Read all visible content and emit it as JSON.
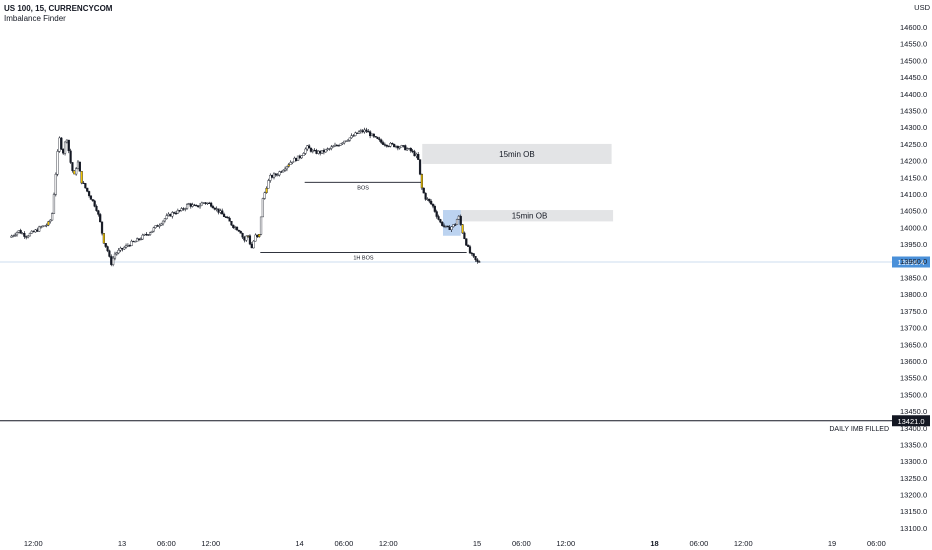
{
  "header": {
    "symbol_line": "US 100, 15, CURRENCYCOM",
    "indicator": "Imbalance Finder"
  },
  "colors": {
    "candle_up": "#131722",
    "candle_down": "#131722",
    "highlight": "#f2c400",
    "zone_gray": "#e3e4e6",
    "zone_blue": "#bcd3f0",
    "price_tag": "#4a90d9",
    "level_line": "#131722"
  },
  "chart_data": {
    "type": "candlestick",
    "currency": "USD",
    "y_axis_ticks": [
      14600,
      14550,
      14500,
      14450,
      14400,
      14350,
      14300,
      14250,
      14200,
      14150,
      14100,
      14050,
      14000,
      13950,
      13900,
      13850,
      13800,
      13750,
      13700,
      13650,
      13600,
      13550,
      13500,
      13450,
      13400,
      13350,
      13300,
      13250,
      13200,
      13150,
      13100
    ],
    "y_axis_labels": [
      "14600.0",
      "14550.0",
      "14500.0",
      "14450.0",
      "14400.0",
      "14350.0",
      "14300.0",
      "14250.0",
      "14200.0",
      "14150.0",
      "14100.0",
      "14050.0",
      "14000.0",
      "13950.0",
      "13900.0",
      "13850.0",
      "13800.0",
      "13750.0",
      "13700.0",
      "13650.0",
      "13600.0",
      "13550.0",
      "13500.0",
      "13450.0",
      "13400.0",
      "13350.0",
      "13300.0",
      "13250.0",
      "13200.0",
      "13150.0",
      "13100.0"
    ],
    "ylim": [
      13080,
      14640
    ],
    "x_axis_labels": [
      {
        "label": "12:00",
        "bold": false
      },
      {
        "label": "13",
        "bold": false
      },
      {
        "label": "06:00",
        "bold": false
      },
      {
        "label": "12:00",
        "bold": false
      },
      {
        "label": "14",
        "bold": false
      },
      {
        "label": "06:00",
        "bold": false
      },
      {
        "label": "12:00",
        "bold": false
      },
      {
        "label": "15",
        "bold": false
      },
      {
        "label": "06:00",
        "bold": false
      },
      {
        "label": "12:00",
        "bold": false
      },
      {
        "label": "18",
        "bold": true
      },
      {
        "label": "06:00",
        "bold": false
      },
      {
        "label": "12:00",
        "bold": false
      },
      {
        "label": "19",
        "bold": false
      },
      {
        "label": "06:00",
        "bold": false
      }
    ],
    "x_axis_hours": [
      -12,
      0,
      6,
      12,
      24,
      30,
      36,
      48,
      54,
      60,
      72,
      78,
      84,
      96,
      102
    ],
    "price_path": [
      [
        -15.2,
        13970
      ],
      [
        -14,
        13990
      ],
      [
        -13,
        13975
      ],
      [
        -12,
        13985
      ],
      [
        -11,
        14000
      ],
      [
        -10,
        14010
      ],
      [
        -9.5,
        14030
      ],
      [
        -9,
        14150
      ],
      [
        -8.5,
        14270
      ],
      [
        -8,
        14220
      ],
      [
        -7.5,
        14275
      ],
      [
        -7,
        14200
      ],
      [
        -6.5,
        14150
      ],
      [
        -6,
        14200
      ],
      [
        -5.5,
        14140
      ],
      [
        -5,
        14120
      ],
      [
        -4.5,
        14100
      ],
      [
        -4,
        14080
      ],
      [
        -3.5,
        14060
      ],
      [
        -3,
        14020
      ],
      [
        -2.5,
        13960
      ],
      [
        -2,
        13935
      ],
      [
        -1.5,
        13890
      ],
      [
        -1,
        13920
      ],
      [
        0,
        13935
      ],
      [
        1,
        13950
      ],
      [
        2,
        13960
      ],
      [
        3,
        13975
      ],
      [
        4,
        13990
      ],
      [
        5,
        14010
      ],
      [
        6,
        14030
      ],
      [
        7,
        14045
      ],
      [
        8,
        14050
      ],
      [
        9,
        14070
      ],
      [
        10,
        14060
      ],
      [
        11,
        14075
      ],
      [
        12,
        14070
      ],
      [
        13,
        14050
      ],
      [
        14,
        14030
      ],
      [
        15,
        14005
      ],
      [
        16,
        13990
      ],
      [
        16.5,
        13960
      ],
      [
        17,
        13980
      ],
      [
        17.5,
        13935
      ],
      [
        18,
        13975
      ],
      [
        18.5,
        13965
      ],
      [
        19,
        14080
      ],
      [
        19.5,
        14120
      ],
      [
        20,
        14150
      ],
      [
        21,
        14160
      ],
      [
        22,
        14180
      ],
      [
        23,
        14200
      ],
      [
        24,
        14210
      ],
      [
        25,
        14240
      ],
      [
        26,
        14225
      ],
      [
        27,
        14225
      ],
      [
        28,
        14235
      ],
      [
        29,
        14245
      ],
      [
        30,
        14260
      ],
      [
        31,
        14270
      ],
      [
        32,
        14285
      ],
      [
        33,
        14290
      ],
      [
        34,
        14270
      ],
      [
        35,
        14255
      ],
      [
        36,
        14248
      ],
      [
        37,
        14245
      ],
      [
        38,
        14240
      ],
      [
        39,
        14230
      ],
      [
        40,
        14210
      ],
      [
        40.5,
        14120
      ],
      [
        41,
        14090
      ],
      [
        42,
        14065
      ],
      [
        43,
        14015
      ],
      [
        44,
        13995
      ],
      [
        45,
        14008
      ],
      [
        45.5,
        14035
      ],
      [
        46,
        13990
      ],
      [
        46.5,
        13955
      ],
      [
        47,
        13925
      ],
      [
        47.5,
        13910
      ],
      [
        48,
        13895
      ],
      [
        48.5,
        13900
      ]
    ],
    "highlighted_candles_hours": [
      -10,
      -6.5,
      -5.5,
      -2.5,
      17,
      18.5,
      19.5,
      22.5,
      40.5,
      46
    ],
    "zones": [
      {
        "label": "15min OB",
        "price_low": 14190,
        "price_high": 14250,
        "start_hour": 40.6,
        "end_hour": 66.2,
        "color": "gray"
      },
      {
        "label": "15min OB",
        "price_low": 14018,
        "price_high": 14052,
        "start_hour": 43.8,
        "end_hour": 66.4,
        "color": "gray"
      },
      {
        "label": "",
        "price_low": 13975,
        "price_high": 14052,
        "start_hour": 43.4,
        "end_hour": 45.8,
        "color": "blue"
      }
    ],
    "structure_lines": [
      {
        "label": "BOS",
        "price": 14135,
        "start_hour": 24.7,
        "end_hour": 40.5
      },
      {
        "label": "1H BOS",
        "price": 13925,
        "start_hour": 18.7,
        "end_hour": 46.6
      }
    ],
    "levels": [
      {
        "label": "DAILY IMB FILLED",
        "price": 13421.0,
        "tag": "13421.0",
        "tag_style": "dark"
      },
      {
        "label": "",
        "price": 13896.4,
        "tag": "13896.4",
        "tag_style": "blue"
      }
    ]
  }
}
